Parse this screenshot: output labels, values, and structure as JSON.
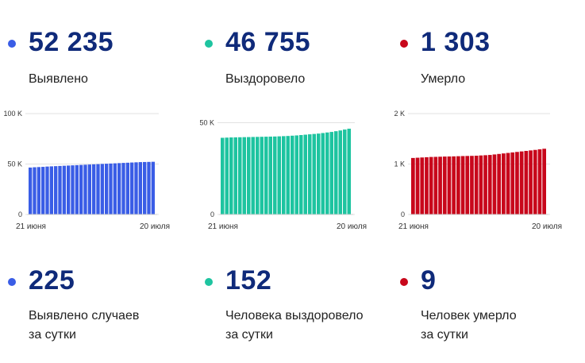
{
  "colors": {
    "blue": "#3a5de6",
    "green": "#1ec4a0",
    "red": "#c8071b",
    "number": "#0f2a7a"
  },
  "totals": [
    {
      "value": "52 235",
      "label": "Выявлено",
      "color": "#3a5de6"
    },
    {
      "value": "46 755",
      "label": "Выздоровело",
      "color": "#1ec4a0"
    },
    {
      "value": "1 303",
      "label": "Умерло",
      "color": "#c8071b"
    }
  ],
  "daily": [
    {
      "value": "225",
      "label_line1": "Выявлено случаев",
      "label_line2": "за сутки",
      "color": "#3a5de6"
    },
    {
      "value": "152",
      "label_line1": "Человека выздоровело",
      "label_line2": "за сутки",
      "color": "#1ec4a0"
    },
    {
      "value": "9",
      "label_line1": "Человек умерло",
      "label_line2": "за сутки",
      "color": "#c8071b"
    }
  ],
  "chart_data": [
    {
      "type": "bar",
      "name": "detected",
      "color": "#3a5de6",
      "x_start_label": "21 июня",
      "x_end_label": "20 июля",
      "yticks": [
        "0",
        "50 K",
        "100 K"
      ],
      "ylim": [
        0,
        100000
      ],
      "values": [
        46500,
        46800,
        47000,
        47200,
        47500,
        47700,
        47900,
        48100,
        48300,
        48500,
        48700,
        48900,
        49100,
        49300,
        49500,
        49700,
        49900,
        50100,
        50300,
        50500,
        50700,
        50900,
        51100,
        51300,
        51500,
        51700,
        51900,
        52000,
        52100,
        52235
      ]
    },
    {
      "type": "bar",
      "name": "recovered",
      "color": "#1ec4a0",
      "x_start_label": "21 июня",
      "x_end_label": "20 июля",
      "yticks": [
        "0",
        "50 K"
      ],
      "ylim": [
        0,
        55000
      ],
      "values": [
        41800,
        41900,
        42000,
        42050,
        42100,
        42150,
        42200,
        42250,
        42300,
        42350,
        42400,
        42450,
        42500,
        42600,
        42700,
        42800,
        42950,
        43100,
        43300,
        43500,
        43700,
        43900,
        44100,
        44400,
        44700,
        45000,
        45400,
        45800,
        46300,
        46755
      ]
    },
    {
      "type": "bar",
      "name": "died",
      "color": "#c8071b",
      "x_start_label": "21 июня",
      "x_end_label": "20 июля",
      "yticks": [
        "0",
        "1 K",
        "2 K"
      ],
      "ylim": [
        0,
        2000
      ],
      "values": [
        1120,
        1125,
        1130,
        1135,
        1140,
        1142,
        1145,
        1148,
        1150,
        1152,
        1155,
        1158,
        1160,
        1162,
        1165,
        1170,
        1175,
        1180,
        1190,
        1200,
        1210,
        1220,
        1230,
        1240,
        1250,
        1260,
        1270,
        1280,
        1292,
        1303
      ]
    }
  ]
}
